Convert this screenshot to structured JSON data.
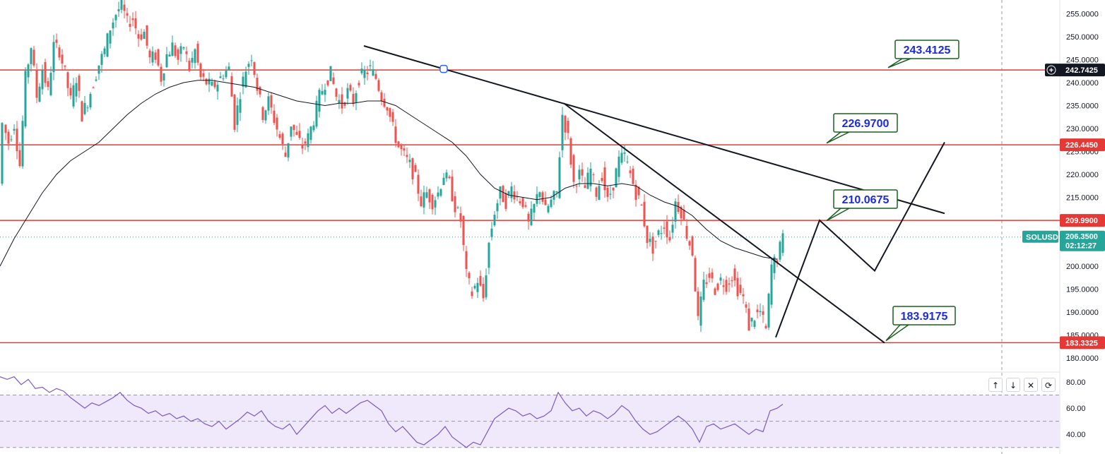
{
  "symbol": "SOLUSD",
  "last_price": "206.3500",
  "countdown": "02:12:27",
  "crosshair_price": "242.7425",
  "level_tags": [
    {
      "price": 226.445,
      "label": "226.4450"
    },
    {
      "price": 209.99,
      "label": "209.9900"
    },
    {
      "price": 183.3325,
      "label": "183.3325"
    }
  ],
  "horizontal_levels": [
    242.7425,
    226.445,
    209.99,
    183.3325
  ],
  "callouts": [
    {
      "label": "243.4125",
      "price": 243.4125
    },
    {
      "label": "226.9700",
      "price": 226.97
    },
    {
      "label": "210.0675",
      "price": 210.0675
    },
    {
      "label": "183.9175",
      "price": 183.9175
    }
  ],
  "colors": {
    "up": "#26a69a",
    "down": "#ef5350",
    "level": "#e53935",
    "rsi": "#7e57c2",
    "rsi_band": "#efe9fb",
    "tag_green": "#26a69a",
    "tag_dark": "#131722",
    "note_border": "#1b5e20",
    "note_text": "#1e2bd8"
  },
  "rsi_panel": {
    "ticks": [
      "80.00",
      "60.00",
      "40.00"
    ]
  },
  "controls": [
    "↑",
    "↓",
    "✕",
    "⟳"
  ],
  "chart_data": {
    "type": "candlestick",
    "title": "SOLUSD",
    "y_axis": {
      "range": [
        178,
        258
      ],
      "ticks": [
        180,
        185,
        190,
        195,
        200,
        205,
        210,
        215,
        220,
        225,
        230,
        235,
        240,
        245,
        250,
        255
      ],
      "tick_labels": [
        "180.0000",
        "185.0000",
        "190.0000",
        "195.0000",
        "200.0000",
        "205.0000",
        "210.0000",
        "215.0000",
        "220.0000",
        "225.0000",
        "230.0000",
        "235.0000",
        "240.0000",
        "245.0000",
        "250.0000",
        "255.0000"
      ]
    },
    "close_path": [
      [
        0,
        218
      ],
      [
        6,
        231
      ],
      [
        14,
        227
      ],
      [
        22,
        231
      ],
      [
        30,
        222
      ],
      [
        38,
        241
      ],
      [
        46,
        248
      ],
      [
        54,
        237
      ],
      [
        62,
        243
      ],
      [
        70,
        238
      ],
      [
        78,
        248
      ],
      [
        86,
        247
      ],
      [
        94,
        242
      ],
      [
        102,
        236
      ],
      [
        110,
        241
      ],
      [
        118,
        233
      ],
      [
        126,
        236
      ],
      [
        134,
        240
      ],
      [
        142,
        244
      ],
      [
        150,
        247
      ],
      [
        158,
        252
      ],
      [
        166,
        255
      ],
      [
        174,
        257
      ],
      [
        182,
        253
      ],
      [
        190,
        254
      ],
      [
        198,
        250
      ],
      [
        206,
        251
      ],
      [
        214,
        245
      ],
      [
        222,
        246
      ],
      [
        230,
        241
      ],
      [
        238,
        246
      ],
      [
        246,
        248
      ],
      [
        254,
        245
      ],
      [
        262,
        248
      ],
      [
        270,
        243
      ],
      [
        278,
        247
      ],
      [
        286,
        241
      ],
      [
        294,
        240
      ],
      [
        302,
        239
      ],
      [
        310,
        240
      ],
      [
        318,
        242
      ],
      [
        326,
        243
      ],
      [
        334,
        231
      ],
      [
        342,
        238
      ],
      [
        350,
        243
      ],
      [
        358,
        246
      ],
      [
        366,
        239
      ],
      [
        374,
        233
      ],
      [
        382,
        236
      ],
      [
        390,
        232
      ],
      [
        398,
        228
      ],
      [
        406,
        224
      ],
      [
        414,
        231
      ],
      [
        422,
        228
      ],
      [
        430,
        226
      ],
      [
        438,
        228
      ],
      [
        446,
        232
      ],
      [
        454,
        237
      ],
      [
        462,
        240
      ],
      [
        470,
        242
      ],
      [
        478,
        237
      ],
      [
        486,
        235
      ],
      [
        494,
        238
      ],
      [
        502,
        236
      ],
      [
        510,
        241
      ],
      [
        518,
        242
      ],
      [
        526,
        243
      ],
      [
        534,
        241
      ],
      [
        542,
        237
      ],
      [
        550,
        235
      ],
      [
        558,
        230
      ],
      [
        566,
        226
      ],
      [
        574,
        224
      ],
      [
        582,
        222
      ],
      [
        590,
        219
      ],
      [
        598,
        214
      ],
      [
        606,
        216
      ],
      [
        614,
        214
      ],
      [
        622,
        216
      ],
      [
        630,
        220
      ],
      [
        638,
        218
      ],
      [
        646,
        213
      ],
      [
        654,
        210
      ],
      [
        662,
        198
      ],
      [
        670,
        194
      ],
      [
        678,
        197
      ],
      [
        686,
        193
      ],
      [
        694,
        205
      ],
      [
        702,
        212
      ],
      [
        710,
        216
      ],
      [
        718,
        214
      ],
      [
        726,
        217
      ],
      [
        734,
        215
      ],
      [
        742,
        214
      ],
      [
        750,
        209
      ],
      [
        758,
        213
      ],
      [
        766,
        217
      ],
      [
        774,
        212
      ],
      [
        782,
        214
      ],
      [
        790,
        216
      ],
      [
        798,
        233
      ],
      [
        806,
        228
      ],
      [
        814,
        218
      ],
      [
        822,
        220
      ],
      [
        830,
        217
      ],
      [
        838,
        221
      ],
      [
        846,
        216
      ],
      [
        854,
        220
      ],
      [
        862,
        214
      ],
      [
        870,
        218
      ],
      [
        878,
        223
      ],
      [
        886,
        224
      ],
      [
        894,
        220
      ],
      [
        902,
        216
      ],
      [
        910,
        213
      ],
      [
        918,
        206
      ],
      [
        926,
        204
      ],
      [
        934,
        207
      ],
      [
        942,
        209
      ],
      [
        950,
        206
      ],
      [
        958,
        214
      ],
      [
        966,
        212
      ],
      [
        974,
        207
      ],
      [
        982,
        203
      ],
      [
        990,
        188
      ],
      [
        998,
        196
      ],
      [
        1006,
        198
      ],
      [
        1014,
        195
      ],
      [
        1022,
        197
      ],
      [
        1030,
        196
      ],
      [
        1038,
        198
      ],
      [
        1046,
        195
      ],
      [
        1054,
        193
      ],
      [
        1062,
        187
      ],
      [
        1070,
        189
      ],
      [
        1078,
        190
      ],
      [
        1086,
        186
      ],
      [
        1094,
        200
      ],
      [
        1102,
        202
      ],
      [
        1110,
        206
      ]
    ],
    "moving_average": [
      [
        0,
        200
      ],
      [
        20,
        206
      ],
      [
        40,
        211
      ],
      [
        60,
        216
      ],
      [
        80,
        220
      ],
      [
        100,
        223
      ],
      [
        120,
        225
      ],
      [
        140,
        227
      ],
      [
        160,
        230
      ],
      [
        180,
        233
      ],
      [
        200,
        235.5
      ],
      [
        220,
        237.5
      ],
      [
        240,
        239
      ],
      [
        260,
        240
      ],
      [
        280,
        240.5
      ],
      [
        300,
        240.5
      ],
      [
        320,
        240
      ],
      [
        340,
        239.5
      ],
      [
        360,
        239
      ],
      [
        380,
        238
      ],
      [
        400,
        237
      ],
      [
        420,
        236
      ],
      [
        440,
        235.5
      ],
      [
        460,
        235
      ],
      [
        480,
        235.5
      ],
      [
        500,
        235.5
      ],
      [
        520,
        236
      ],
      [
        540,
        236
      ],
      [
        560,
        235
      ],
      [
        580,
        233
      ],
      [
        600,
        231
      ],
      [
        620,
        229
      ],
      [
        640,
        227
      ],
      [
        660,
        224
      ],
      [
        680,
        220
      ],
      [
        700,
        217
      ],
      [
        720,
        215.5
      ],
      [
        740,
        215
      ],
      [
        760,
        214.5
      ],
      [
        780,
        215
      ],
      [
        800,
        217
      ],
      [
        820,
        218
      ],
      [
        840,
        218
      ],
      [
        860,
        217.5
      ],
      [
        880,
        218
      ],
      [
        900,
        217.5
      ],
      [
        920,
        215.5
      ],
      [
        940,
        214
      ],
      [
        960,
        213
      ],
      [
        980,
        211
      ],
      [
        1000,
        208
      ],
      [
        1020,
        205.5
      ],
      [
        1040,
        204
      ],
      [
        1060,
        203
      ],
      [
        1080,
        202
      ],
      [
        1100,
        201.5
      ]
    ],
    "trendlines": [
      {
        "name": "upper-trendline",
        "from": [
          515,
          248
        ],
        "to": [
          1337,
          211.5
        ]
      },
      {
        "name": "lower-trendline",
        "from": [
          798,
          235.5
        ],
        "to": [
          1252,
          183.3
        ]
      }
    ],
    "projection_path": [
      [
        1098,
        184.5
      ],
      [
        1160,
        210
      ],
      [
        1238,
        199
      ],
      [
        1337,
        227
      ]
    ],
    "rsi": {
      "bands": [
        70,
        50,
        30
      ],
      "axis_range": [
        25,
        87
      ],
      "ticks": [
        80,
        60,
        40
      ],
      "values": [
        [
          0,
          84
        ],
        [
          10,
          82
        ],
        [
          20,
          84
        ],
        [
          30,
          78
        ],
        [
          40,
          82
        ],
        [
          50,
          75
        ],
        [
          60,
          76
        ],
        [
          70,
          72
        ],
        [
          80,
          75
        ],
        [
          90,
          73
        ],
        [
          100,
          68
        ],
        [
          110,
          64
        ],
        [
          120,
          60
        ],
        [
          130,
          64
        ],
        [
          140,
          62
        ],
        [
          150,
          65
        ],
        [
          160,
          68
        ],
        [
          170,
          72
        ],
        [
          180,
          66
        ],
        [
          190,
          62
        ],
        [
          200,
          60
        ],
        [
          210,
          56
        ],
        [
          220,
          58
        ],
        [
          230,
          54
        ],
        [
          240,
          56
        ],
        [
          250,
          52
        ],
        [
          260,
          54
        ],
        [
          270,
          50
        ],
        [
          280,
          52
        ],
        [
          290,
          48
        ],
        [
          300,
          46
        ],
        [
          310,
          50
        ],
        [
          320,
          44
        ],
        [
          330,
          48
        ],
        [
          340,
          52
        ],
        [
          350,
          57
        ],
        [
          360,
          54
        ],
        [
          370,
          58
        ],
        [
          380,
          50
        ],
        [
          390,
          46
        ],
        [
          400,
          44
        ],
        [
          410,
          48
        ],
        [
          420,
          40
        ],
        [
          430,
          46
        ],
        [
          440,
          52
        ],
        [
          450,
          58
        ],
        [
          460,
          62
        ],
        [
          470,
          56
        ],
        [
          480,
          60
        ],
        [
          490,
          56
        ],
        [
          500,
          60
        ],
        [
          510,
          64
        ],
        [
          520,
          66
        ],
        [
          530,
          62
        ],
        [
          540,
          58
        ],
        [
          550,
          48
        ],
        [
          560,
          42
        ],
        [
          570,
          46
        ],
        [
          580,
          40
        ],
        [
          590,
          34
        ],
        [
          600,
          32
        ],
        [
          610,
          36
        ],
        [
          620,
          40
        ],
        [
          630,
          46
        ],
        [
          640,
          38
        ],
        [
          650,
          34
        ],
        [
          660,
          30
        ],
        [
          670,
          34
        ],
        [
          680,
          32
        ],
        [
          690,
          42
        ],
        [
          700,
          52
        ],
        [
          710,
          56
        ],
        [
          720,
          60
        ],
        [
          730,
          58
        ],
        [
          740,
          54
        ],
        [
          750,
          56
        ],
        [
          760,
          52
        ],
        [
          770,
          54
        ],
        [
          780,
          58
        ],
        [
          790,
          72
        ],
        [
          800,
          64
        ],
        [
          810,
          58
        ],
        [
          820,
          60
        ],
        [
          830,
          54
        ],
        [
          840,
          58
        ],
        [
          850,
          56
        ],
        [
          860,
          52
        ],
        [
          870,
          56
        ],
        [
          880,
          62
        ],
        [
          890,
          58
        ],
        [
          900,
          50
        ],
        [
          910,
          44
        ],
        [
          920,
          40
        ],
        [
          930,
          42
        ],
        [
          940,
          46
        ],
        [
          950,
          50
        ],
        [
          960,
          54
        ],
        [
          970,
          50
        ],
        [
          980,
          44
        ],
        [
          990,
          34
        ],
        [
          1000,
          46
        ],
        [
          1010,
          48
        ],
        [
          1020,
          44
        ],
        [
          1030,
          46
        ],
        [
          1040,
          48
        ],
        [
          1050,
          44
        ],
        [
          1060,
          40
        ],
        [
          1070,
          44
        ],
        [
          1080,
          42
        ],
        [
          1090,
          58
        ],
        [
          1100,
          60
        ],
        [
          1108,
          63
        ]
      ]
    }
  }
}
